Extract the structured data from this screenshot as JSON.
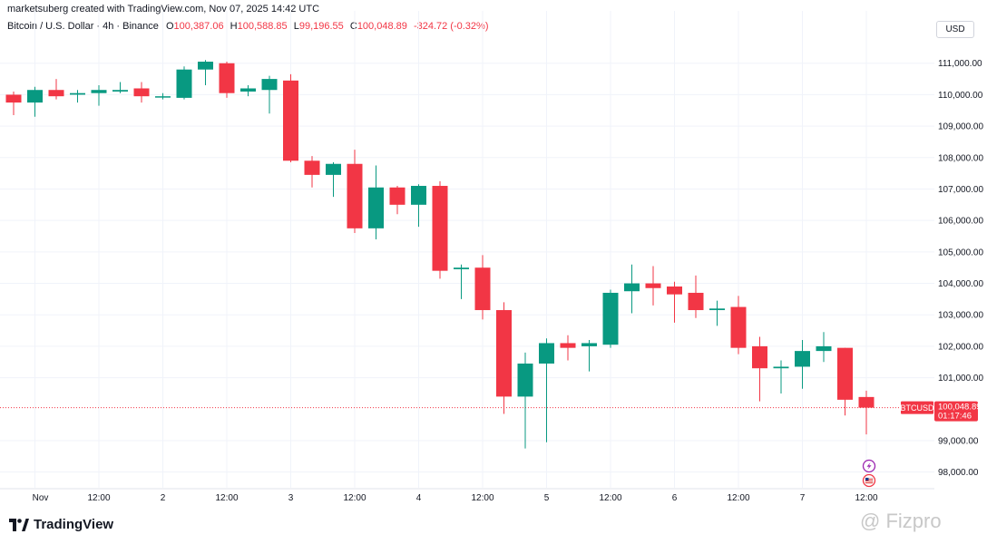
{
  "header": {
    "author_text": "marketsuberg created with TradingView.com, Nov 07, 2025 14:42 UTC"
  },
  "symbol_line": {
    "title": "Bitcoin / U.S. Dollar · 4h · Binance",
    "open_key": "O",
    "open": "100,387.06",
    "high_key": "H",
    "high": "100,588.85",
    "low_key": "L",
    "low": "99,196.55",
    "close_key": "C",
    "close": "100,048.89",
    "change": "-324.72 (-0.32%)"
  },
  "currency_label": "USD",
  "price_tag": {
    "symbol": "BTCUSD",
    "price": "100,048.89",
    "countdown": "01:17:46"
  },
  "footer": {
    "logo_text": "TradingView"
  },
  "watermark_text": "@ Fizpro",
  "colors": {
    "up": "#089981",
    "down": "#f23645",
    "grid": "#f0f3fa",
    "text": "#131722",
    "last_price_line": "#f23645"
  },
  "chart_data": {
    "type": "candlestick",
    "title": "Bitcoin / U.S. Dollar · 4h · Binance",
    "y_range": [
      97500,
      111800
    ],
    "y_ticks": [
      {
        "value": 111000,
        "label": "111,000.00"
      },
      {
        "value": 110000,
        "label": "110,000.00"
      },
      {
        "value": 109000,
        "label": "109,000.00"
      },
      {
        "value": 108000,
        "label": "108,000.00"
      },
      {
        "value": 107000,
        "label": "107,000.00"
      },
      {
        "value": 106000,
        "label": "106,000.00"
      },
      {
        "value": 105000,
        "label": "105,000.00"
      },
      {
        "value": 104000,
        "label": "104,000.00"
      },
      {
        "value": 103000,
        "label": "103,000.00"
      },
      {
        "value": 102000,
        "label": "102,000.00"
      },
      {
        "value": 101000,
        "label": "101,000.00"
      },
      {
        "value": 99000,
        "label": "99,000.00"
      },
      {
        "value": 98000,
        "label": "98,000.00"
      }
    ],
    "x_ticks": [
      {
        "index": 1,
        "label": "Nov"
      },
      {
        "index": 4,
        "label": "12:00"
      },
      {
        "index": 7,
        "label": "2"
      },
      {
        "index": 10,
        "label": "12:00"
      },
      {
        "index": 13,
        "label": "3"
      },
      {
        "index": 16,
        "label": "12:00"
      },
      {
        "index": 19,
        "label": "4"
      },
      {
        "index": 22,
        "label": "12:00"
      },
      {
        "index": 25,
        "label": "5"
      },
      {
        "index": 28,
        "label": "12:00"
      },
      {
        "index": 31,
        "label": "6"
      },
      {
        "index": 34,
        "label": "12:00"
      },
      {
        "index": 37,
        "label": "7"
      },
      {
        "index": 40,
        "label": "12:00"
      }
    ],
    "last_price": 100048.89,
    "candles": [
      {
        "o": 110000,
        "h": 110100,
        "l": 109350,
        "c": 109750
      },
      {
        "o": 109750,
        "h": 110250,
        "l": 109300,
        "c": 110150
      },
      {
        "o": 110150,
        "h": 110500,
        "l": 109850,
        "c": 109950
      },
      {
        "o": 110000,
        "h": 110150,
        "l": 109750,
        "c": 110050
      },
      {
        "o": 110050,
        "h": 110300,
        "l": 109650,
        "c": 110150
      },
      {
        "o": 110100,
        "h": 110400,
        "l": 110050,
        "c": 110150
      },
      {
        "o": 110200,
        "h": 110400,
        "l": 109750,
        "c": 109950
      },
      {
        "o": 109950,
        "h": 110050,
        "l": 109850,
        "c": 109950
      },
      {
        "o": 109900,
        "h": 110900,
        "l": 109850,
        "c": 110800
      },
      {
        "o": 110800,
        "h": 111100,
        "l": 110300,
        "c": 111050
      },
      {
        "o": 111000,
        "h": 111050,
        "l": 109900,
        "c": 110050
      },
      {
        "o": 110100,
        "h": 110300,
        "l": 109950,
        "c": 110200
      },
      {
        "o": 110150,
        "h": 110600,
        "l": 109400,
        "c": 110500
      },
      {
        "o": 110450,
        "h": 110650,
        "l": 107850,
        "c": 107900
      },
      {
        "o": 107900,
        "h": 108050,
        "l": 107050,
        "c": 107450
      },
      {
        "o": 107450,
        "h": 107850,
        "l": 106750,
        "c": 107800
      },
      {
        "o": 107800,
        "h": 108250,
        "l": 105600,
        "c": 105750
      },
      {
        "o": 105750,
        "h": 107750,
        "l": 105400,
        "c": 107050
      },
      {
        "o": 107050,
        "h": 107100,
        "l": 106200,
        "c": 106500
      },
      {
        "o": 106500,
        "h": 107150,
        "l": 105800,
        "c": 107100
      },
      {
        "o": 107100,
        "h": 107250,
        "l": 104150,
        "c": 104400
      },
      {
        "o": 104450,
        "h": 104600,
        "l": 103500,
        "c": 104500
      },
      {
        "o": 104500,
        "h": 104900,
        "l": 102850,
        "c": 103150
      },
      {
        "o": 103150,
        "h": 103400,
        "l": 99850,
        "c": 100400
      },
      {
        "o": 100400,
        "h": 101800,
        "l": 98750,
        "c": 101450
      },
      {
        "o": 101450,
        "h": 102250,
        "l": 98950,
        "c": 102100
      },
      {
        "o": 102100,
        "h": 102350,
        "l": 101550,
        "c": 101950
      },
      {
        "o": 102000,
        "h": 102200,
        "l": 101200,
        "c": 102100
      },
      {
        "o": 102050,
        "h": 103800,
        "l": 101950,
        "c": 103700
      },
      {
        "o": 103750,
        "h": 104600,
        "l": 103050,
        "c": 104000
      },
      {
        "o": 104000,
        "h": 104550,
        "l": 103300,
        "c": 103850
      },
      {
        "o": 103900,
        "h": 104050,
        "l": 102750,
        "c": 103650
      },
      {
        "o": 103700,
        "h": 104250,
        "l": 102900,
        "c": 103150
      },
      {
        "o": 103150,
        "h": 103450,
        "l": 102650,
        "c": 103200
      },
      {
        "o": 103250,
        "h": 103600,
        "l": 101750,
        "c": 101950
      },
      {
        "o": 102000,
        "h": 102300,
        "l": 100250,
        "c": 101300
      },
      {
        "o": 101300,
        "h": 101550,
        "l": 100500,
        "c": 101350
      },
      {
        "o": 101350,
        "h": 102200,
        "l": 100650,
        "c": 101850
      },
      {
        "o": 101850,
        "h": 102450,
        "l": 101500,
        "c": 102000
      },
      {
        "o": 101950,
        "h": 101950,
        "l": 99800,
        "c": 100300
      },
      {
        "o": 100387.06,
        "h": 100588.85,
        "l": 99196.55,
        "c": 100048.89
      }
    ]
  }
}
